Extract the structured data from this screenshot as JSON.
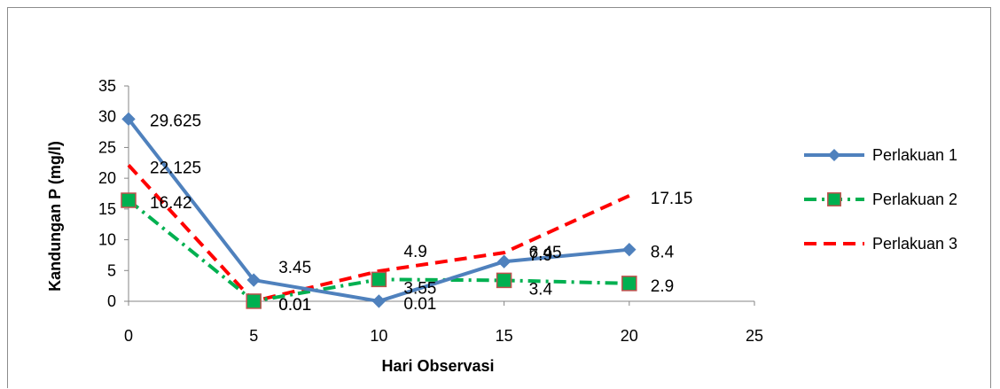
{
  "chart_data": {
    "type": "line",
    "title": "",
    "xlabel": "Hari Observasi",
    "ylabel": "Kandungan P (mg/l)",
    "xlim": [
      0,
      25
    ],
    "ylim": [
      0,
      35
    ],
    "x_ticks": [
      0,
      5,
      10,
      15,
      20,
      25
    ],
    "y_ticks": [
      0,
      5,
      10,
      15,
      20,
      25,
      30,
      35
    ],
    "grid": false,
    "legend_position": "right",
    "x": [
      0,
      5,
      10,
      15,
      20
    ],
    "series": [
      {
        "name": "Perlakuan 1",
        "values": [
          29.625,
          3.45,
          0.01,
          6.45,
          8.4
        ],
        "labels": [
          "29.625",
          "3.45",
          "0.01",
          "6.45",
          "8.4"
        ],
        "color": "#4f81bd",
        "marker": "diamond",
        "line_style": "solid"
      },
      {
        "name": "Perlakuan 2",
        "values": [
          16.42,
          0.01,
          3.55,
          3.4,
          2.9
        ],
        "labels": [
          "16.42",
          "0.01",
          "3.55",
          "3.4",
          "2.9"
        ],
        "color": "#00b050",
        "marker": "square",
        "marker_fill": "#00b050",
        "marker_edge": "#c0504d",
        "line_style": "dash-dot"
      },
      {
        "name": "Perlakuan 3",
        "values": [
          22.125,
          0.01,
          4.9,
          7.9,
          17.15
        ],
        "labels": [
          "22.125",
          "0.01",
          "4.9",
          "7.9",
          "17.15"
        ],
        "color": "#ff0000",
        "marker": "none",
        "line_style": "dashed"
      }
    ]
  }
}
